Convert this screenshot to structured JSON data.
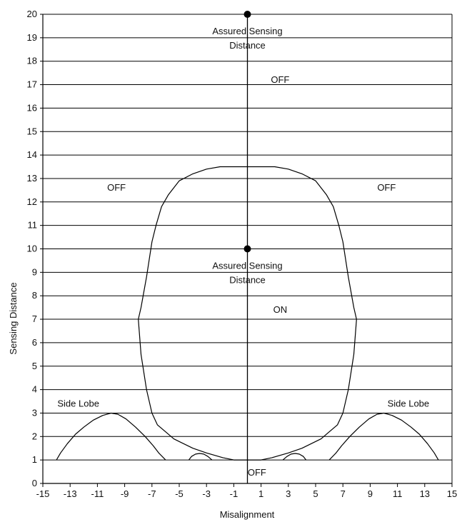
{
  "chart_data": {
    "type": "line",
    "title": "",
    "xlabel": "Misalignment",
    "ylabel": "Sensing Distance",
    "xlim": [
      -15,
      15
    ],
    "ylim": [
      0,
      20
    ],
    "grid": "horizontal",
    "x_ticks": [
      -15,
      -13,
      -11,
      -9,
      -7,
      -5,
      -3,
      -1,
      1,
      3,
      5,
      7,
      9,
      11,
      13,
      15
    ],
    "y_ticks": [
      0,
      1,
      2,
      3,
      4,
      5,
      6,
      7,
      8,
      9,
      10,
      11,
      12,
      13,
      14,
      15,
      16,
      17,
      18,
      19,
      20
    ],
    "colors": {
      "line": "#000000",
      "grid": "#000000",
      "background": "#ffffff"
    },
    "series": [
      {
        "role": "main-lobe",
        "x": [
          -7,
          -6.7,
          -6.3,
          -5.8,
          -5,
          -4,
          -3,
          -2,
          -1.2,
          1.2,
          2,
          3,
          4,
          5,
          5.8,
          6.3,
          6.7,
          7,
          7.4,
          7.8,
          8,
          7.8,
          7.4,
          7,
          6.6,
          6,
          5.4,
          4,
          3,
          1.8,
          1,
          -1,
          -1.8,
          -3,
          -4,
          -5.4,
          -6,
          -6.6,
          -7,
          -7.4,
          -7.8,
          -8,
          -7.8,
          -7.4,
          -7
        ],
        "y": [
          10.3,
          11,
          11.8,
          12.3,
          12.9,
          13.2,
          13.4,
          13.5,
          13.5,
          13.5,
          13.5,
          13.4,
          13.2,
          12.9,
          12.3,
          11.8,
          11,
          10.3,
          8.8,
          7.5,
          7,
          5.5,
          4,
          3,
          2.5,
          2.2,
          1.9,
          1.5,
          1.3,
          1.1,
          1,
          1,
          1.1,
          1.3,
          1.5,
          1.9,
          2.2,
          2.5,
          3,
          4,
          5.5,
          7,
          7.5,
          8.8,
          10.3
        ]
      },
      {
        "role": "side-lobe-left",
        "x": [
          -14,
          -13.7,
          -13.2,
          -12.6,
          -12,
          -11.3,
          -10.6,
          -10,
          -9.5,
          -8.9,
          -8.2,
          -7.5,
          -6.9,
          -6.5,
          -6
        ],
        "y": [
          1,
          1.3,
          1.7,
          2.1,
          2.4,
          2.7,
          2.9,
          3,
          2.95,
          2.75,
          2.4,
          2,
          1.6,
          1.3,
          1
        ]
      },
      {
        "role": "side-lobe-right",
        "x": [
          6,
          6.5,
          6.9,
          7.5,
          8.2,
          8.9,
          9.5,
          10,
          10.6,
          11.3,
          12,
          12.6,
          13.2,
          13.7,
          14
        ],
        "y": [
          1,
          1.3,
          1.6,
          2,
          2.4,
          2.75,
          2.95,
          3,
          2.9,
          2.7,
          2.4,
          2.1,
          1.7,
          1.3,
          1
        ]
      },
      {
        "role": "small-bump-left",
        "x": [
          -4.3,
          -4.1,
          -3.8,
          -3.5,
          -3.2,
          -2.9,
          -2.6
        ],
        "y": [
          1,
          1.15,
          1.25,
          1.28,
          1.25,
          1.15,
          1
        ]
      },
      {
        "role": "small-bump-right",
        "x": [
          2.6,
          2.9,
          3.2,
          3.5,
          3.8,
          4.1,
          4.3
        ],
        "y": [
          1,
          1.15,
          1.25,
          1.28,
          1.25,
          1.15,
          1
        ]
      }
    ],
    "points": [
      {
        "x": 0,
        "y": 20,
        "label": "Assured Sensing Distance"
      },
      {
        "x": 0,
        "y": 10,
        "label": "Assured Sensing Distance"
      }
    ],
    "annotations": [
      {
        "text": "OFF",
        "x": 2.4,
        "y": 17.2
      },
      {
        "text": "OFF",
        "x": -9.6,
        "y": 12.6
      },
      {
        "text": "OFF",
        "x": 10.2,
        "y": 12.6
      },
      {
        "text": "ON",
        "x": 2.4,
        "y": 7.4
      },
      {
        "text": "OFF",
        "x": 0.7,
        "y": 0.45
      },
      {
        "text": "Side Lobe",
        "x": -12.4,
        "y": 3.4
      },
      {
        "text": "Side Lobe",
        "x": 11.8,
        "y": 3.4
      }
    ]
  }
}
